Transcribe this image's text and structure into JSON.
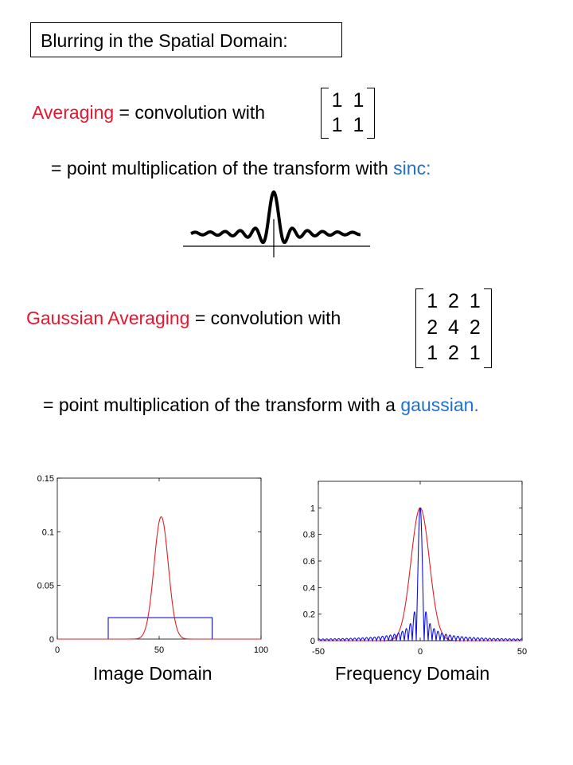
{
  "title": "Blurring in the Spatial Domain:",
  "averaging": {
    "term": "Averaging",
    "rest": " = convolution with",
    "matrix": [
      "1  1",
      "1  1"
    ]
  },
  "sinc_line": {
    "text": "= point multiplication of the transform with ",
    "highlight": "sinc:"
  },
  "gaussian": {
    "term": "Gaussian Averaging",
    "rest": " = convolution with",
    "matrix": [
      "1  2  1",
      "2  4  2",
      "1  2  1"
    ]
  },
  "gauss_line": {
    "text": "= point multiplication of the transform with a ",
    "highlight": "gaussian."
  },
  "colors": {
    "red": "#e8152e",
    "blue": "#1f6fd6",
    "plot_red": "#e02020",
    "plot_blue": "#1010e0"
  },
  "captions": {
    "left": "Image Domain",
    "right": "Frequency Domain"
  },
  "chart_data": [
    {
      "type": "line",
      "xlim": [
        0,
        100
      ],
      "ylim": [
        0,
        0.15
      ],
      "xticks": [
        "0",
        "50",
        "100"
      ],
      "yticks": [
        "0",
        "0.05",
        "0.1",
        "0.15"
      ],
      "series": [
        {
          "color": "#1010e0",
          "kind": "box",
          "x": [
            0,
            25,
            25,
            76,
            76,
            100
          ],
          "y": [
            0,
            0,
            0.02,
            0.02,
            0,
            0
          ]
        },
        {
          "color": "#e02020",
          "kind": "gaussian",
          "center": 51,
          "sigma": 3.5,
          "peak": 0.114
        }
      ]
    },
    {
      "type": "line",
      "xlim": [
        -50,
        50
      ],
      "ylim": [
        0,
        1.2
      ],
      "xticks": [
        "-50",
        "0",
        "50"
      ],
      "yticks": [
        "0",
        "0.2",
        "0.4",
        "0.6",
        "0.8",
        "1"
      ],
      "series": [
        {
          "color": "#e02020",
          "kind": "gaussian",
          "center": 0,
          "sigma": 4.5,
          "peak": 1.0
        },
        {
          "color": "#1010e0",
          "kind": "abs-sinc",
          "center": 0,
          "width": 1.95,
          "peak": 1.0
        }
      ]
    }
  ]
}
